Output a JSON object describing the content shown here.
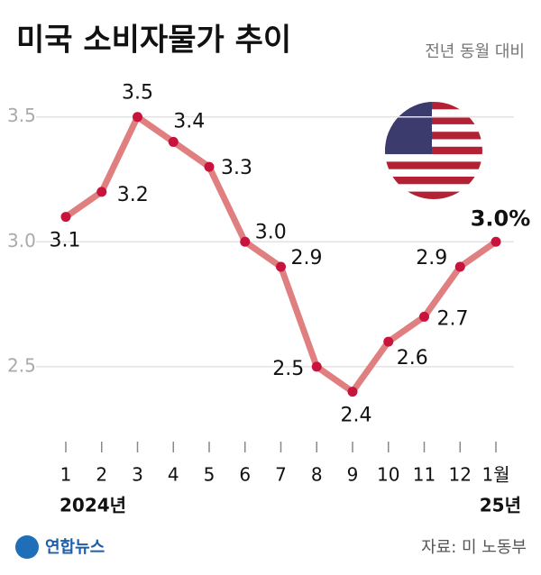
{
  "chart_data": {
    "type": "line",
    "title": "미국 소비자물가 추이",
    "subtitle": "전년 동월 대비",
    "categories": [
      "1",
      "2",
      "3",
      "4",
      "5",
      "6",
      "7",
      "8",
      "9",
      "10",
      "11",
      "12",
      "1월"
    ],
    "year_labels": [
      "2024년",
      "25년"
    ],
    "values": [
      3.1,
      3.2,
      3.5,
      3.4,
      3.3,
      3.0,
      2.9,
      2.5,
      2.4,
      2.6,
      2.7,
      2.9,
      3.0
    ],
    "value_labels": [
      "3.1",
      "3.2",
      "3.5",
      "3.4",
      "3.3",
      "3.0",
      "2.9",
      "2.5",
      "2.4",
      "2.6",
      "2.7",
      "2.9",
      "3.0%"
    ],
    "color": "#e07f80",
    "marker_color": "#c8143c",
    "ylim": [
      2.2,
      3.6
    ],
    "yticks": [
      2.5,
      {
        "value": 3,
        "label": "3.0"
      },
      3.5
    ],
    "grid": true,
    "source": "자료: 미 노동부",
    "logo": "연합뉴스"
  }
}
